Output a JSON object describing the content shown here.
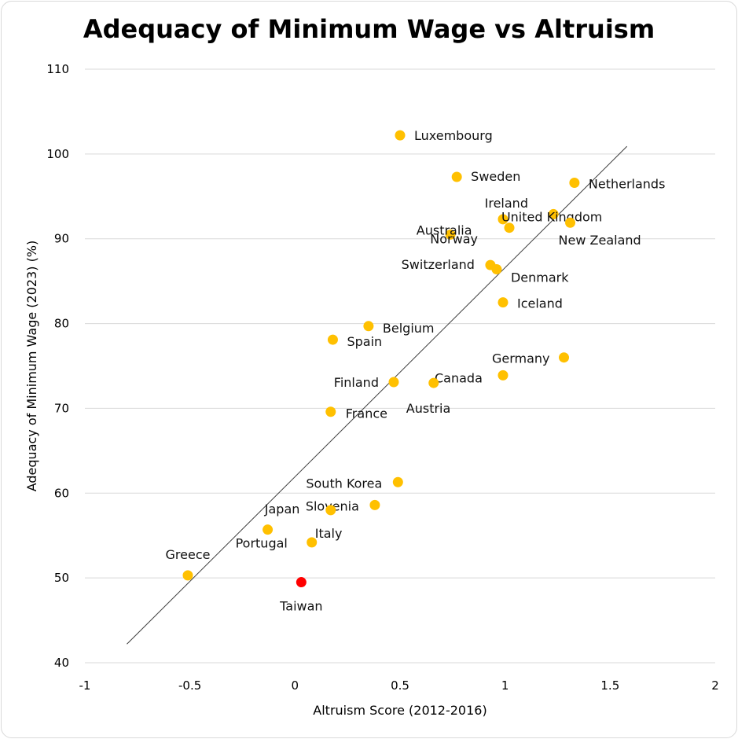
{
  "chart_data": {
    "type": "scatter",
    "title": "Adequacy of Minimum Wage vs Altruism",
    "xlabel": "Altruism Score (2012-2016)",
    "ylabel": "Adequacy of Minimum Wage (2023) (%)",
    "xlim": [
      -1,
      2
    ],
    "ylim": [
      40,
      110
    ],
    "xticks": [
      -1,
      -0.5,
      0,
      0.5,
      1,
      1.5,
      2
    ],
    "yticks": [
      40,
      50,
      60,
      70,
      80,
      90,
      100,
      110
    ],
    "grid": true,
    "colors": {
      "point": "#FFC000",
      "highlight": "#FF0000",
      "highlight_label": "#E00000",
      "grid": "#d9d9d9",
      "trendline": "#3c3c3c"
    },
    "trendline": {
      "x": [
        -0.8,
        1.58
      ],
      "y": [
        42.2,
        100.9
      ]
    },
    "points": [
      {
        "label": "Luxembourg",
        "x": 0.5,
        "y": 102.2
      },
      {
        "label": "Sweden",
        "x": 0.77,
        "y": 97.3
      },
      {
        "label": "Netherlands",
        "x": 1.33,
        "y": 96.6
      },
      {
        "label": "Ireland",
        "x": 0.99,
        "y": 92.3
      },
      {
        "label": "United Kingdom",
        "x": 1.23,
        "y": 92.9
      },
      {
        "label": "Australia",
        "x": 0.74,
        "y": 90.5
      },
      {
        "label": "New Zealand",
        "x": 1.31,
        "y": 91.9
      },
      {
        "label": "Norway",
        "x": 1.02,
        "y": 91.3
      },
      {
        "label": "Switzerland",
        "x": 0.93,
        "y": 86.9
      },
      {
        "label": "Denmark",
        "x": 0.96,
        "y": 86.4
      },
      {
        "label": "Iceland",
        "x": 0.99,
        "y": 82.5
      },
      {
        "label": "Belgium",
        "x": 0.35,
        "y": 79.7
      },
      {
        "label": "Spain",
        "x": 0.18,
        "y": 78.1
      },
      {
        "label": "Germany",
        "x": 1.28,
        "y": 76.0
      },
      {
        "label": "Canada",
        "x": 0.99,
        "y": 73.9
      },
      {
        "label": "Finland",
        "x": 0.47,
        "y": 73.1
      },
      {
        "label": "Austria",
        "x": 0.66,
        "y": 73.0
      },
      {
        "label": "France",
        "x": 0.17,
        "y": 69.6
      },
      {
        "label": "South Korea",
        "x": 0.49,
        "y": 61.3
      },
      {
        "label": "Slovenia",
        "x": 0.38,
        "y": 58.6
      },
      {
        "label": "Japan",
        "x": 0.17,
        "y": 58.0
      },
      {
        "label": "Portugal",
        "x": -0.13,
        "y": 55.7
      },
      {
        "label": "Italy",
        "x": 0.08,
        "y": 54.2
      },
      {
        "label": "Greece",
        "x": -0.51,
        "y": 50.3
      },
      {
        "label": "Taiwan",
        "x": 0.03,
        "y": 49.5,
        "highlight": true
      }
    ]
  }
}
